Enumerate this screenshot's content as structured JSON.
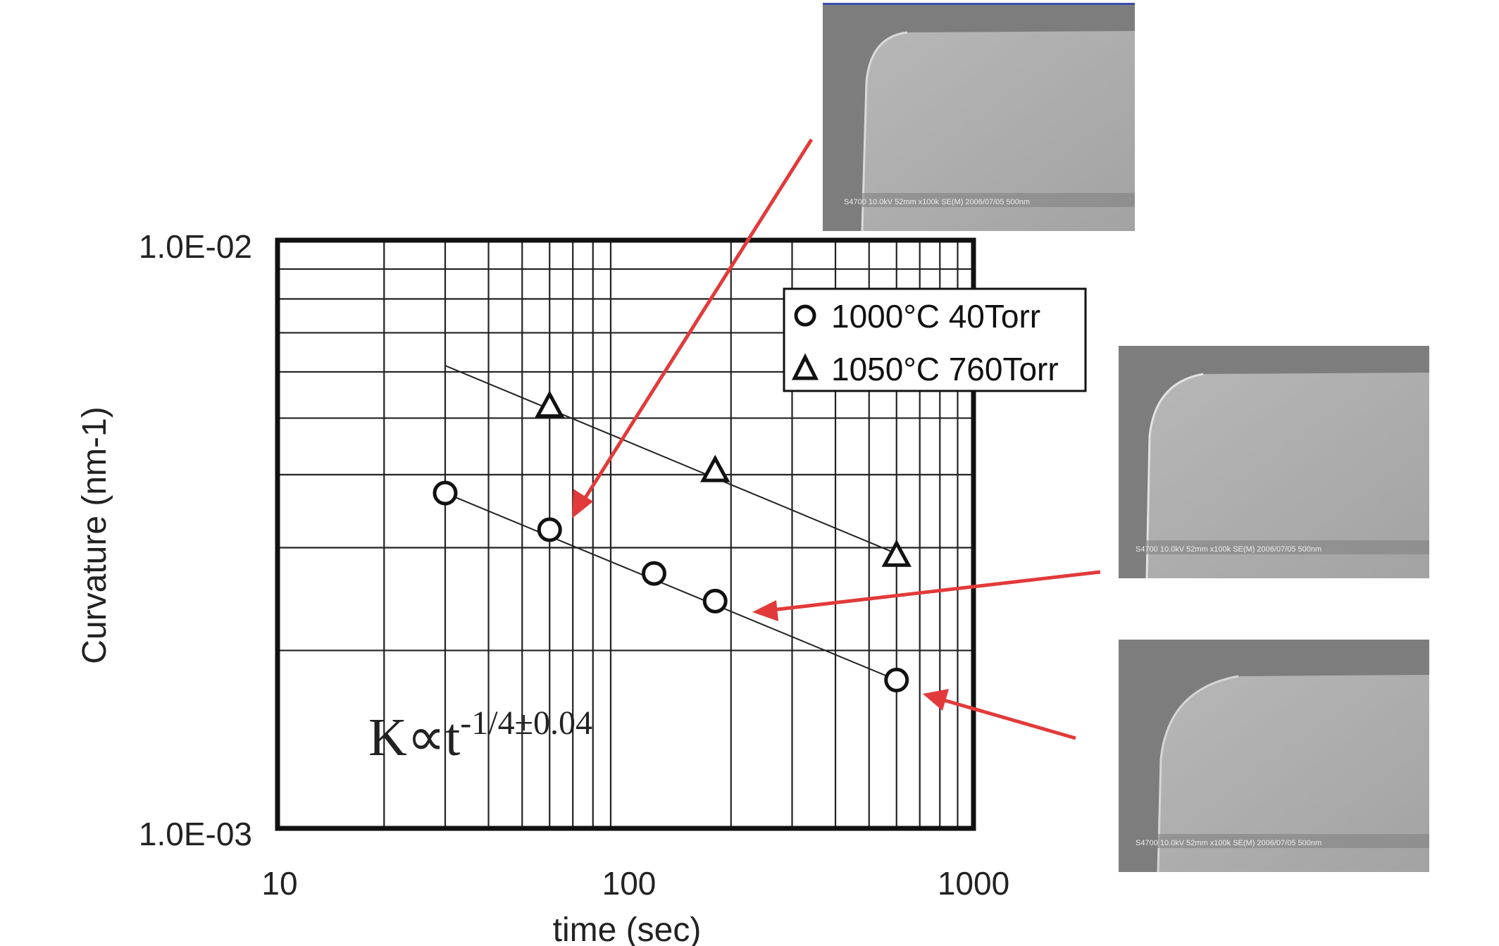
{
  "chart_data": {
    "type": "scatter",
    "xlabel": "time (sec)",
    "ylabel": "Curvature (nm-1)",
    "x_scale": "log",
    "y_scale": "log",
    "xlim": [
      10,
      1000
    ],
    "ylim": [
      0.001,
      0.01
    ],
    "x_ticks": [
      "10",
      "100",
      "1000"
    ],
    "y_ticks": [
      "1.0E-02",
      "1.0E-03"
    ],
    "grid": true,
    "legend_position": "top-right",
    "series": [
      {
        "name": "1000°C 40Torr",
        "marker": "circle",
        "points": [
          {
            "x": 30,
            "y": 0.00372
          },
          {
            "x": 60,
            "y": 0.00322
          },
          {
            "x": 120,
            "y": 0.00271
          },
          {
            "x": 180,
            "y": 0.00243
          },
          {
            "x": 600,
            "y": 0.00178
          }
        ],
        "fit": [
          [
            30,
            0.00372
          ],
          [
            600,
            0.00178
          ]
        ]
      },
      {
        "name": "1050°C 760Torr",
        "marker": "triangle",
        "points": [
          {
            "x": 60,
            "y": 0.00522
          },
          {
            "x": 180,
            "y": 0.00405
          },
          {
            "x": 600,
            "y": 0.0029
          }
        ],
        "fit": [
          [
            30,
            0.00615
          ],
          [
            600,
            0.00293
          ]
        ]
      }
    ],
    "annotation": {
      "base": "K∝t",
      "exponent": "-1/4±0.04"
    }
  },
  "sem_images": [
    {
      "name": "sem-micrograph-top",
      "caption": "S4700 10.0kV 52mm x100k SE(M) 2006/07/05   500nm"
    },
    {
      "name": "sem-micrograph-middle",
      "caption": "S4700 10.0kV 52mm x100k SE(M) 2006/07/05   500nm"
    },
    {
      "name": "sem-micrograph-bottom",
      "caption": "S4700 10.0kV 52mm x100k SE(M) 2006/07/05   500nm"
    }
  ],
  "colors": {
    "arrow": "#e23a3a",
    "sem_background": "#7d7d7d",
    "sem_body": "#a9a9a9",
    "axes": "#111111"
  }
}
